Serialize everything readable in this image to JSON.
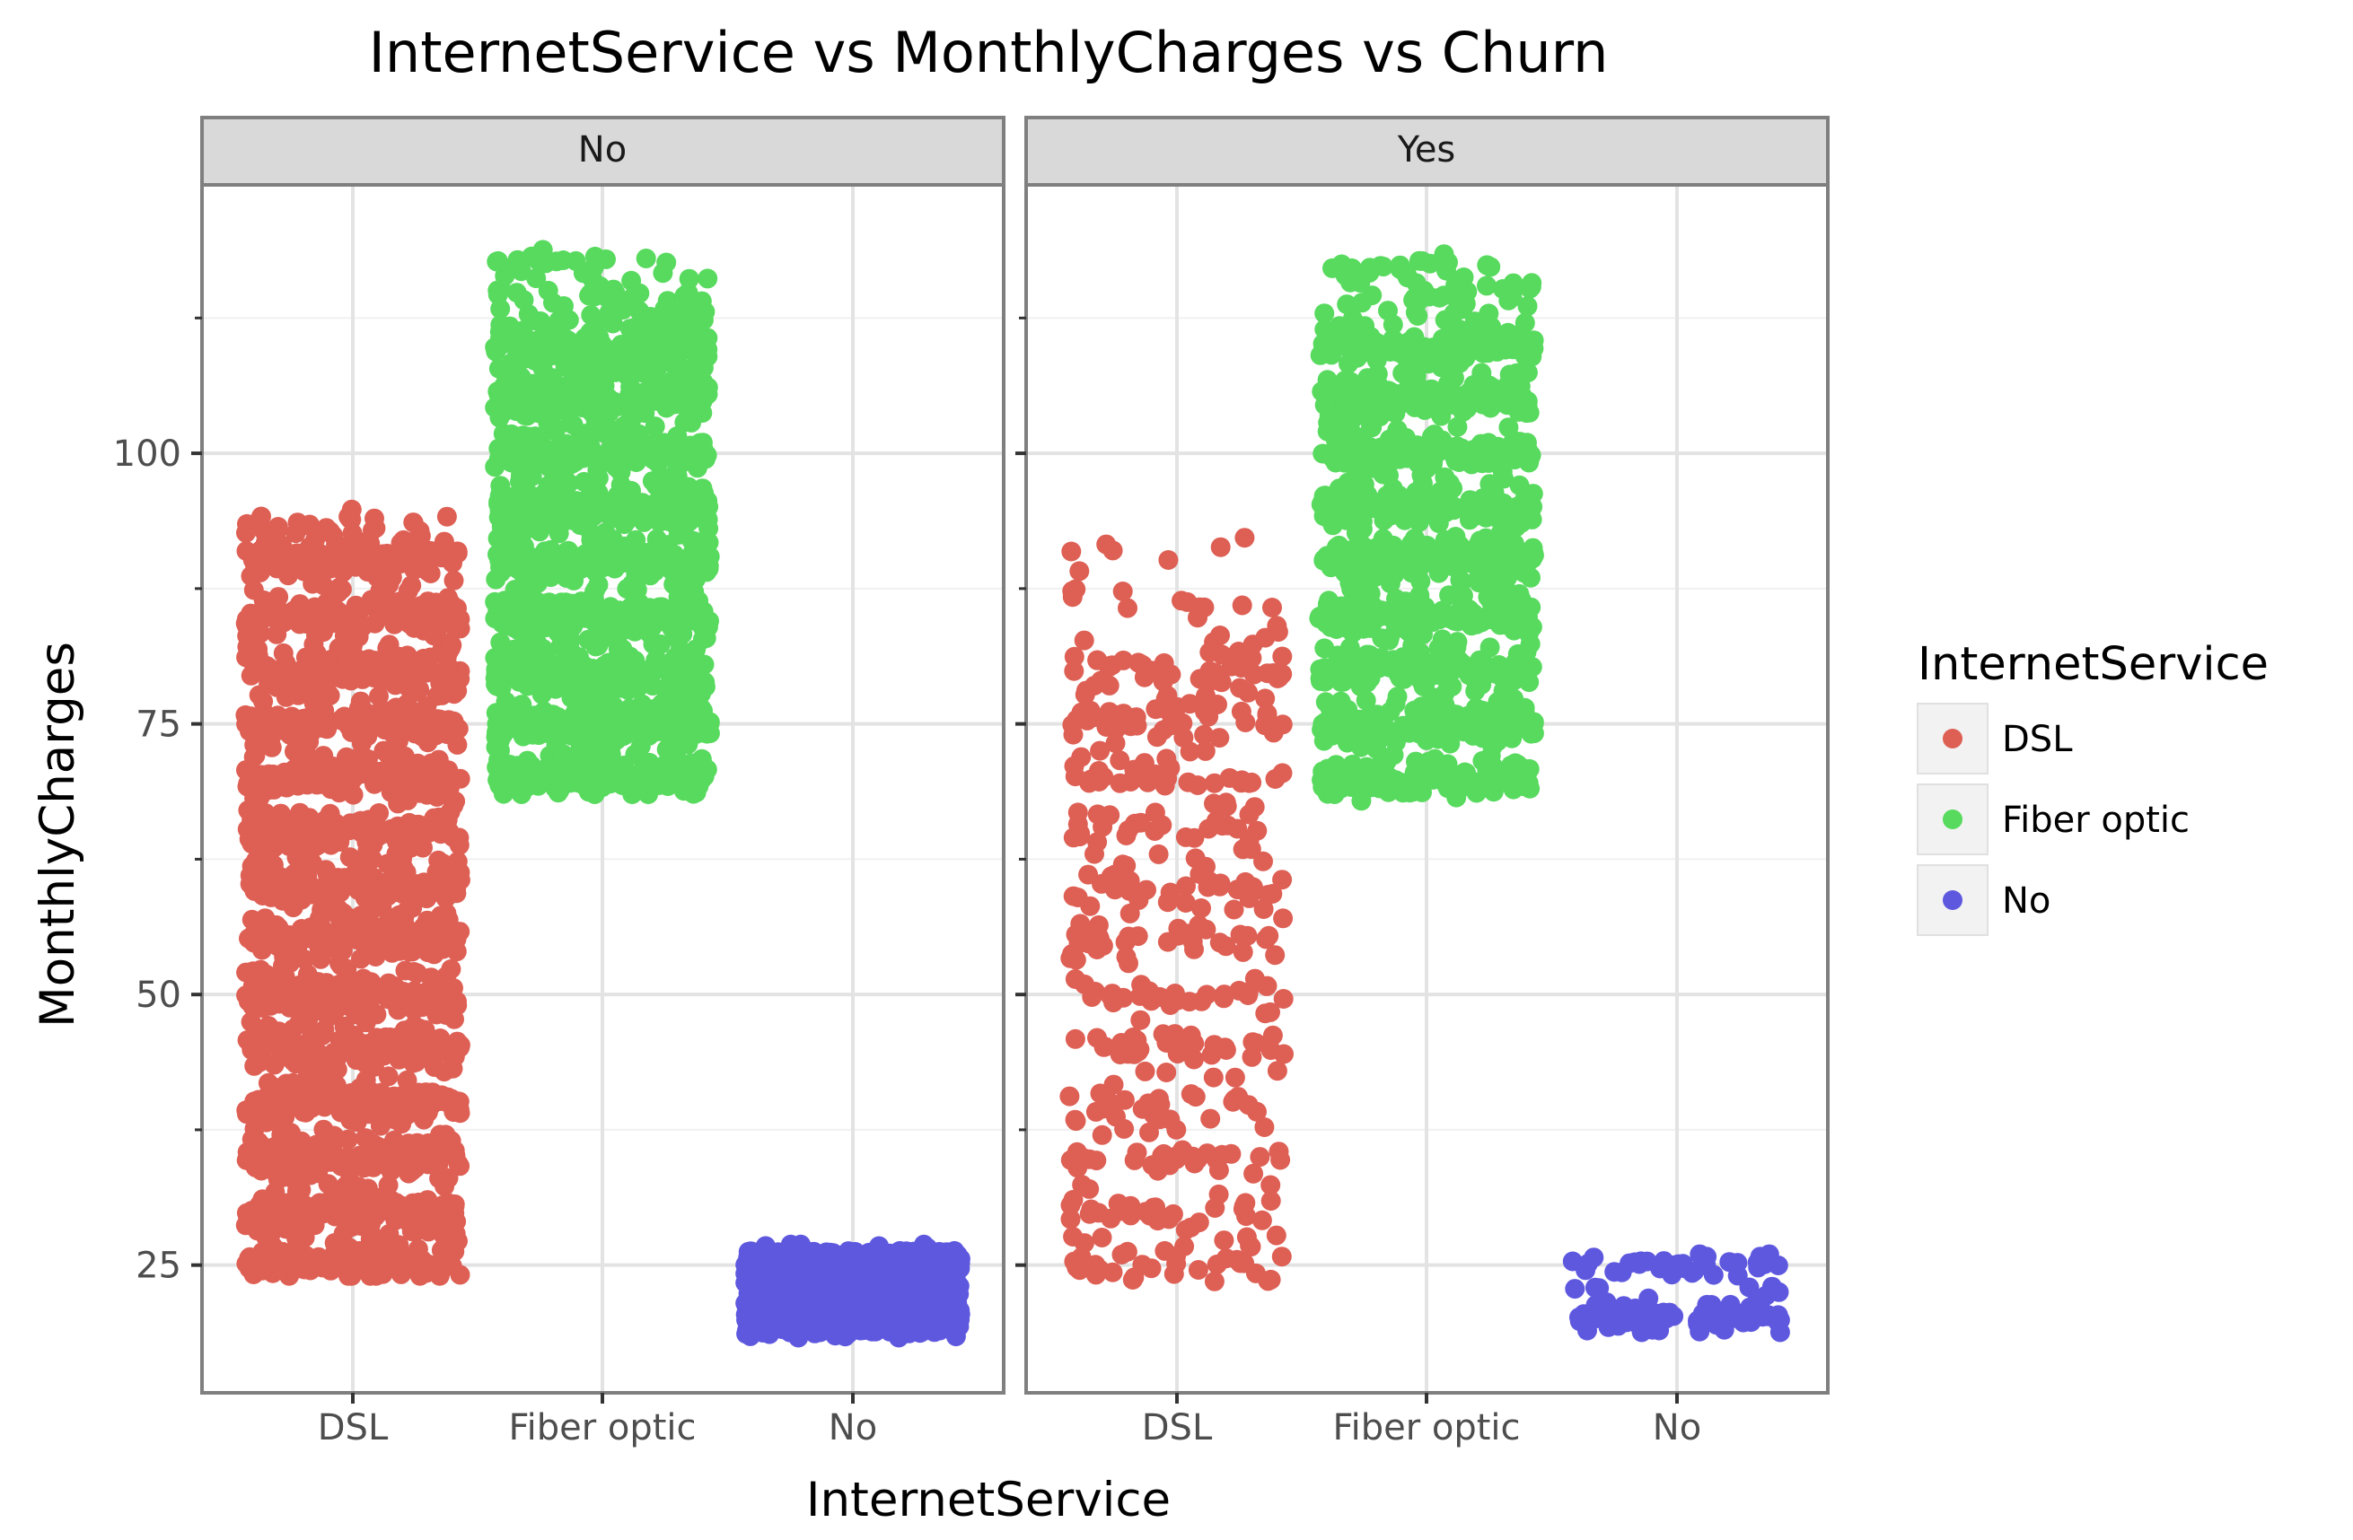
{
  "chart_data": {
    "type": "scatter",
    "title": "InternetService vs MonthlyCharges vs Churn",
    "xlabel": "InternetService",
    "ylabel": "MonthlyCharges",
    "categories": [
      "DSL",
      "Fiber optic",
      "No"
    ],
    "ylim": [
      13.2,
      124.8
    ],
    "yticks": [
      25,
      50,
      75,
      100
    ],
    "grid": true,
    "facet_variable": "Churn",
    "legend": {
      "title": "InternetService",
      "position": "right",
      "entries": [
        "DSL",
        "Fiber optic",
        "No"
      ]
    },
    "colors": {
      "DSL": "#DE5F54",
      "Fiber optic": "#57DA5E",
      "No": "#5E58DF"
    },
    "facets": [
      {
        "label": "No",
        "groups": [
          {
            "category": "DSL",
            "y_min": 24,
            "y_max": 94.8,
            "approx_points": 1950,
            "bands": [
              25,
              30,
              35,
              40,
              45,
              50,
              55,
              60,
              65,
              70,
              75,
              80,
              85,
              90
            ]
          },
          {
            "category": "Fiber optic",
            "y_min": 68.5,
            "y_max": 118.8,
            "approx_points": 1800,
            "bands": [
              70,
              75,
              80,
              85,
              90,
              95,
              100,
              105,
              110
            ]
          },
          {
            "category": "No",
            "y_min": 18.3,
            "y_max": 26.9,
            "approx_points": 1400,
            "bands": [
              20,
              25
            ]
          }
        ]
      },
      {
        "label": "Yes",
        "groups": [
          {
            "category": "DSL",
            "y_min": 23.5,
            "y_max": 92.2,
            "approx_points": 460,
            "bands": [
              25,
              30,
              35,
              40,
              45,
              50,
              55,
              60,
              65,
              70,
              75,
              80
            ]
          },
          {
            "category": "Fiber optic",
            "y_min": 67.9,
            "y_max": 118.4,
            "approx_points": 1300,
            "bands": [
              70,
              75,
              80,
              85,
              90,
              95,
              100,
              105,
              110
            ]
          },
          {
            "category": "No",
            "y_min": 18.8,
            "y_max": 26,
            "approx_points": 110,
            "bands": [
              20,
              25
            ]
          }
        ]
      }
    ]
  }
}
